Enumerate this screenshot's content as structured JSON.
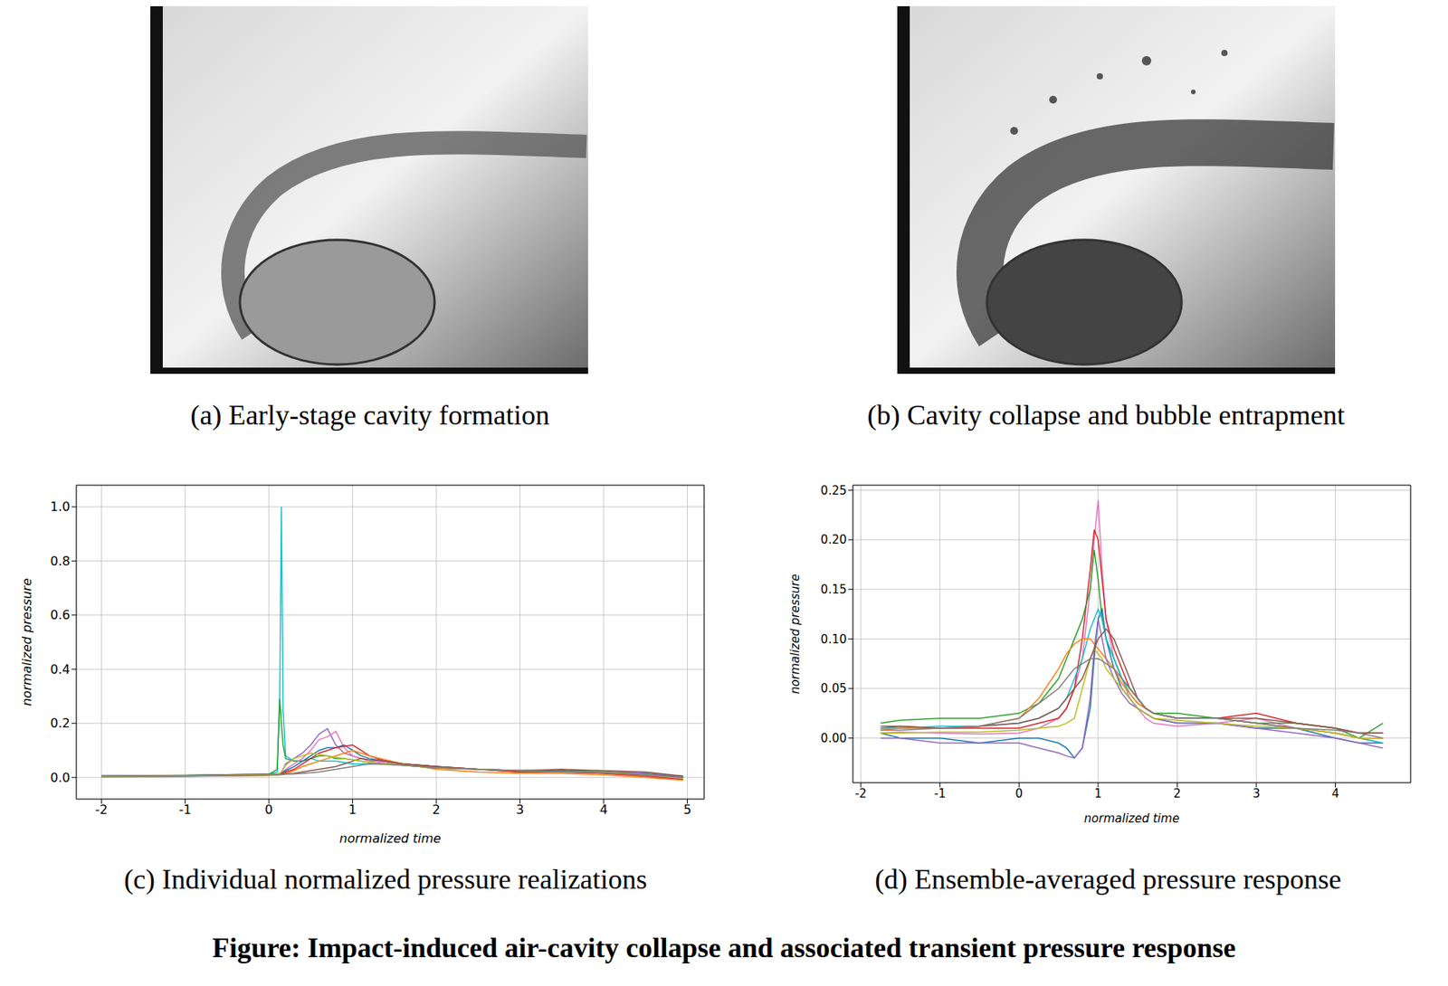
{
  "figure_title": "Figure: Impact-induced air-cavity collapse and associated transient pressure response",
  "images": [
    {
      "caption": "(a) Early-stage cavity formation"
    },
    {
      "caption": "(b) Cavity collapse and bubble entrapment"
    }
  ],
  "chart_data": [
    {
      "type": "line",
      "title": "(c) Individual normalized pressure realizations",
      "x_label": "normalized time",
      "y_label": "normalized pressure",
      "grid": true,
      "xlim": [
        -2.3,
        5.2
      ],
      "ylim": [
        -0.08,
        1.08
      ],
      "xticks": [
        -2,
        -1,
        0,
        1,
        2,
        3,
        4,
        5
      ],
      "yticks": [
        {
          "value": 0,
          "label": "0.0"
        },
        0.2,
        0.4,
        0.6,
        0.8,
        {
          "value": 1,
          "label": "1.0"
        }
      ],
      "x": [
        -2,
        -1.5,
        -1,
        -0.5,
        0,
        0.1,
        0.13,
        0.15,
        0.17,
        0.2,
        0.3,
        0.4,
        0.5,
        0.6,
        0.7,
        0.8,
        0.9,
        1.0,
        1.1,
        1.2,
        1.4,
        1.6,
        1.8,
        2.0,
        2.5,
        3.0,
        3.5,
        4.0,
        4.5,
        4.95
      ],
      "series": [
        {
          "color": "#17becf",
          "values": [
            0.005,
            0.006,
            0.008,
            0.01,
            0.012,
            0.02,
            0.3,
            1.0,
            0.25,
            0.08,
            0.06,
            0.06,
            0.07,
            0.06,
            0.06,
            0.06,
            0.055,
            0.05,
            0.05,
            0.05,
            0.05,
            0.045,
            0.04,
            0.035,
            0.03,
            0.025,
            0.025,
            0.02,
            0.015,
            0.005
          ]
        },
        {
          "color": "#2ca02c",
          "values": [
            0.004,
            0.005,
            0.007,
            0.01,
            0.012,
            0.03,
            0.29,
            0.2,
            0.12,
            0.07,
            0.06,
            0.06,
            0.07,
            0.08,
            0.08,
            0.07,
            0.07,
            0.065,
            0.06,
            0.055,
            0.05,
            0.045,
            0.04,
            0.035,
            0.03,
            0.025,
            0.025,
            0.022,
            0.015,
            0.0
          ]
        },
        {
          "color": "#9467bd",
          "values": [
            0.003,
            0.004,
            0.006,
            0.008,
            0.01,
            0.012,
            0.015,
            0.02,
            0.03,
            0.05,
            0.07,
            0.09,
            0.12,
            0.16,
            0.18,
            0.12,
            0.09,
            0.08,
            0.07,
            0.065,
            0.06,
            0.05,
            0.045,
            0.04,
            0.03,
            0.025,
            0.025,
            0.02,
            0.015,
            0.002
          ]
        },
        {
          "color": "#e377c2",
          "values": [
            0.002,
            0.004,
            0.005,
            0.007,
            0.009,
            0.01,
            0.012,
            0.015,
            0.02,
            0.03,
            0.05,
            0.07,
            0.1,
            0.14,
            0.15,
            0.17,
            0.11,
            0.08,
            0.07,
            0.06,
            0.055,
            0.05,
            0.04,
            0.035,
            0.03,
            0.025,
            0.02,
            0.02,
            0.01,
            -0.005
          ]
        },
        {
          "color": "#1f77b4",
          "values": [
            0.006,
            0.007,
            0.008,
            0.01,
            0.012,
            0.013,
            0.014,
            0.015,
            0.02,
            0.025,
            0.04,
            0.06,
            0.08,
            0.1,
            0.11,
            0.11,
            0.12,
            0.1,
            0.08,
            0.07,
            0.06,
            0.05,
            0.045,
            0.04,
            0.03,
            0.02,
            0.025,
            0.02,
            0.01,
            0.0
          ]
        },
        {
          "color": "#d62728",
          "values": [
            0.004,
            0.005,
            0.006,
            0.008,
            0.01,
            0.012,
            0.013,
            0.014,
            0.016,
            0.02,
            0.03,
            0.05,
            0.07,
            0.09,
            0.1,
            0.11,
            0.115,
            0.12,
            0.1,
            0.08,
            0.06,
            0.05,
            0.045,
            0.04,
            0.03,
            0.02,
            0.02,
            0.015,
            0.005,
            -0.008
          ]
        },
        {
          "color": "#ff7f0e",
          "values": [
            0.003,
            0.004,
            0.005,
            0.006,
            0.008,
            0.01,
            0.011,
            0.012,
            0.013,
            0.015,
            0.025,
            0.04,
            0.05,
            0.06,
            0.07,
            0.08,
            0.09,
            0.1,
            0.09,
            0.08,
            0.065,
            0.05,
            0.04,
            0.03,
            0.02,
            0.015,
            0.015,
            0.01,
            0.0,
            -0.01
          ]
        },
        {
          "color": "#8c564b",
          "values": [
            0.005,
            0.006,
            0.007,
            0.009,
            0.01,
            0.011,
            0.012,
            0.012,
            0.013,
            0.014,
            0.015,
            0.02,
            0.025,
            0.03,
            0.035,
            0.04,
            0.05,
            0.06,
            0.07,
            0.065,
            0.06,
            0.05,
            0.045,
            0.04,
            0.03,
            0.025,
            0.03,
            0.025,
            0.02,
            0.005
          ]
        },
        {
          "color": "#bcbd22",
          "values": [
            0.004,
            0.005,
            0.006,
            0.008,
            0.01,
            0.012,
            0.015,
            0.02,
            0.03,
            0.045,
            0.07,
            0.08,
            0.09,
            0.085,
            0.08,
            0.075,
            0.07,
            0.065,
            0.06,
            0.055,
            0.05,
            0.045,
            0.04,
            0.035,
            0.03,
            0.025,
            0.02,
            0.02,
            0.01,
            -0.002
          ]
        },
        {
          "color": "#7f7f7f",
          "values": [
            0.002,
            0.003,
            0.004,
            0.006,
            0.008,
            0.009,
            0.01,
            0.01,
            0.011,
            0.012,
            0.013,
            0.015,
            0.017,
            0.02,
            0.025,
            0.03,
            0.035,
            0.04,
            0.045,
            0.05,
            0.048,
            0.045,
            0.04,
            0.035,
            0.03,
            0.025,
            0.02,
            0.018,
            0.01,
            0.0
          ]
        }
      ]
    },
    {
      "type": "line",
      "title": "(d) Ensemble-averaged pressure response",
      "x_label": "normalized time",
      "y_label": "normalized pressure",
      "grid": true,
      "xlim": [
        -2.1,
        4.95
      ],
      "ylim": [
        -0.045,
        0.255
      ],
      "xticks": [
        -2,
        -1,
        0,
        1,
        2,
        3,
        4
      ],
      "yticks": [
        {
          "value": 0,
          "label": "0.00"
        },
        0.05,
        {
          "value": 0.1,
          "label": "0.10"
        },
        0.15,
        {
          "value": 0.2,
          "label": "0.20"
        },
        0.25
      ],
      "x": [
        -1.75,
        -1.5,
        -1,
        -0.5,
        0,
        0.25,
        0.5,
        0.6,
        0.7,
        0.8,
        0.9,
        0.95,
        1.0,
        1.05,
        1.1,
        1.2,
        1.3,
        1.4,
        1.5,
        1.6,
        1.7,
        2.0,
        2.5,
        3.0,
        3.5,
        4.0,
        4.3,
        4.6
      ],
      "series": [
        {
          "color": "#e377c2",
          "values": [
            0.005,
            0.006,
            0.005,
            0.004,
            0.005,
            0.01,
            0.02,
            0.03,
            0.05,
            0.08,
            0.15,
            0.2,
            0.24,
            0.17,
            0.12,
            0.08,
            0.06,
            0.04,
            0.03,
            0.02,
            0.015,
            0.012,
            0.015,
            0.02,
            0.01,
            0.005,
            0.0,
            -0.005
          ]
        },
        {
          "color": "#d62728",
          "values": [
            0.01,
            0.012,
            0.01,
            0.01,
            0.01,
            0.015,
            0.02,
            0.03,
            0.05,
            0.1,
            0.17,
            0.21,
            0.2,
            0.16,
            0.12,
            0.09,
            0.07,
            0.05,
            0.04,
            0.03,
            0.025,
            0.02,
            0.02,
            0.025,
            0.015,
            0.01,
            0.005,
            0.005
          ]
        },
        {
          "color": "#2ca02c",
          "values": [
            0.015,
            0.018,
            0.02,
            0.02,
            0.025,
            0.035,
            0.06,
            0.08,
            0.1,
            0.12,
            0.15,
            0.19,
            0.16,
            0.12,
            0.1,
            0.08,
            0.06,
            0.05,
            0.04,
            0.03,
            0.025,
            0.025,
            0.02,
            0.015,
            0.015,
            0.01,
            0.0,
            0.015
          ]
        },
        {
          "color": "#1f77b4",
          "values": [
            0.005,
            0.0,
            0.0,
            -0.005,
            0.0,
            0.0,
            -0.005,
            -0.01,
            -0.02,
            -0.01,
            0.03,
            0.08,
            0.12,
            0.13,
            0.1,
            0.07,
            0.05,
            0.04,
            0.03,
            0.025,
            0.02,
            0.015,
            0.015,
            0.01,
            0.01,
            0.0,
            -0.005,
            -0.005
          ]
        },
        {
          "color": "#17becf",
          "values": [
            0.01,
            0.01,
            0.012,
            0.012,
            0.015,
            0.02,
            0.03,
            0.04,
            0.06,
            0.08,
            0.11,
            0.12,
            0.13,
            0.12,
            0.1,
            0.08,
            0.06,
            0.045,
            0.035,
            0.03,
            0.025,
            0.02,
            0.02,
            0.015,
            0.01,
            0.005,
            0.0,
            -0.005
          ]
        },
        {
          "color": "#ff7f0e",
          "values": [
            0.008,
            0.01,
            0.01,
            0.012,
            0.02,
            0.04,
            0.07,
            0.085,
            0.095,
            0.1,
            0.1,
            0.095,
            0.09,
            0.085,
            0.08,
            0.07,
            0.055,
            0.045,
            0.035,
            0.03,
            0.025,
            0.02,
            0.02,
            0.015,
            0.01,
            0.005,
            0.0,
            0.0
          ]
        },
        {
          "color": "#9467bd",
          "values": [
            0.0,
            0.0,
            -0.005,
            -0.005,
            -0.005,
            -0.01,
            -0.015,
            -0.018,
            -0.02,
            -0.01,
            0.04,
            0.09,
            0.12,
            0.1,
            0.08,
            0.06,
            0.045,
            0.035,
            0.03,
            0.025,
            0.02,
            0.015,
            0.015,
            0.01,
            0.005,
            0.0,
            -0.005,
            -0.01
          ]
        },
        {
          "color": "#bcbd22",
          "values": [
            0.005,
            0.005,
            0.006,
            0.006,
            0.008,
            0.01,
            0.012,
            0.015,
            0.02,
            0.05,
            0.08,
            0.09,
            0.085,
            0.08,
            0.07,
            0.06,
            0.05,
            0.04,
            0.03,
            0.025,
            0.02,
            0.018,
            0.015,
            0.012,
            0.01,
            0.005,
            0.0,
            0.0
          ]
        },
        {
          "color": "#8c564b",
          "values": [
            0.012,
            0.012,
            0.01,
            0.012,
            0.015,
            0.02,
            0.03,
            0.04,
            0.05,
            0.06,
            0.08,
            0.09,
            0.1,
            0.105,
            0.11,
            0.1,
            0.08,
            0.06,
            0.04,
            0.03,
            0.025,
            0.02,
            0.02,
            0.02,
            0.015,
            0.01,
            0.005,
            0.005
          ]
        },
        {
          "color": "#7f7f7f",
          "values": [
            0.008,
            0.008,
            0.01,
            0.012,
            0.02,
            0.035,
            0.05,
            0.06,
            0.07,
            0.075,
            0.08,
            0.08,
            0.08,
            0.078,
            0.075,
            0.07,
            0.06,
            0.05,
            0.04,
            0.03,
            0.025,
            0.02,
            0.02,
            0.015,
            0.01,
            0.008,
            0.005,
            0.0
          ]
        }
      ]
    }
  ]
}
